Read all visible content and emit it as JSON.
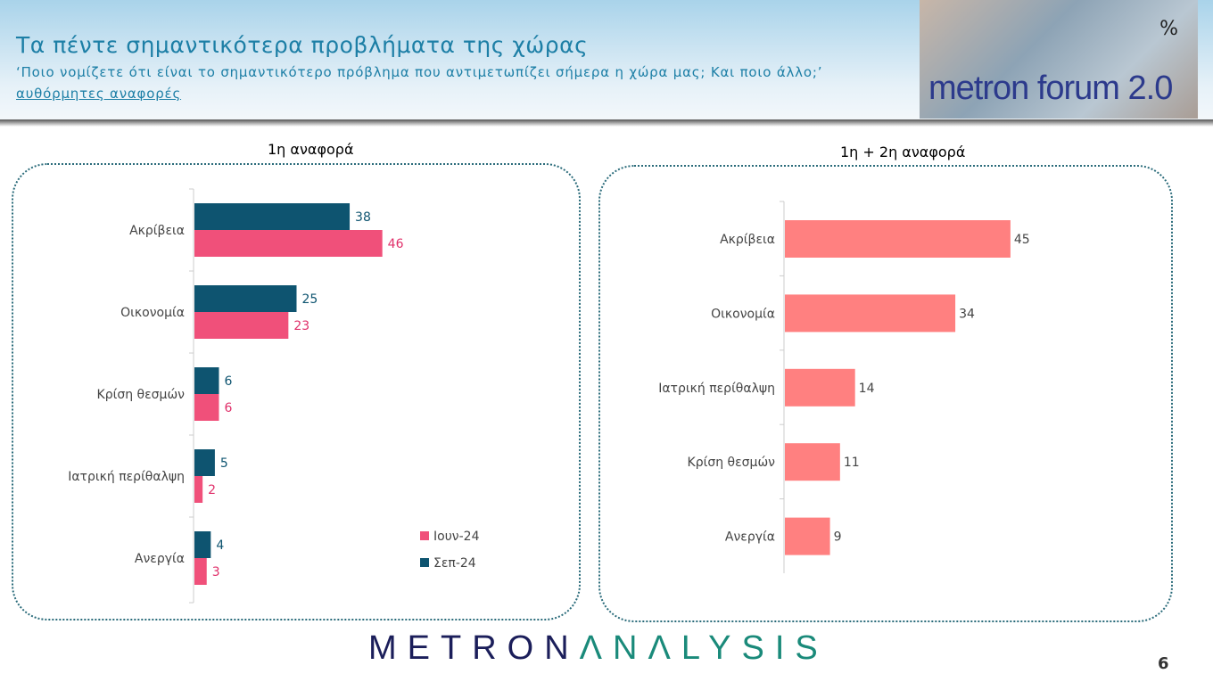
{
  "header": {
    "title": "Τα πέντε σημαντικότερα προβλήματα της χώρας",
    "subtitle": "‘Ποιο νομίζετε ότι είναι το σημαντικότερο πρόβλημα που αντιμετωπίζει σήμερα η χώρα μας; Και ποιο άλλο;’",
    "note": "αυθόρμητες αναφορές ",
    "logo_text": "metron forum 2.0",
    "unit": "%"
  },
  "footer": {
    "brand_a": "METRON",
    "brand_b": "ΛNΛLYSIS",
    "page": "6"
  },
  "chart_data": [
    {
      "type": "bar",
      "orientation": "horizontal",
      "title": "1η αναφορά",
      "categories": [
        "Ακρίβεια",
        "Οικονομία",
        "Κρίση θεσμών",
        "Ιατρική περίθαλψη",
        "Ανεργία"
      ],
      "series": [
        {
          "name": "Σεπ-24",
          "color": "#0e5470",
          "values": [
            38,
            25,
            6,
            5,
            4
          ]
        },
        {
          "name": "Ιουν-24",
          "color": "#f0507a",
          "values": [
            46,
            23,
            6,
            2,
            3
          ]
        }
      ],
      "legend_order": [
        "Ιουν-24",
        "Σεπ-24"
      ],
      "legend": "bottom-right",
      "grid": false
    },
    {
      "type": "bar",
      "orientation": "horizontal",
      "title": "1η + 2η αναφορά",
      "categories": [
        "Ακρίβεια",
        "Οικονομία",
        "Ιατρική περίθαλψη",
        "Κρίση θεσμών",
        "Ανεργία"
      ],
      "series": [
        {
          "color": "#ff8080",
          "values": [
            45,
            34,
            14,
            11,
            9
          ]
        }
      ],
      "grid": false
    }
  ]
}
